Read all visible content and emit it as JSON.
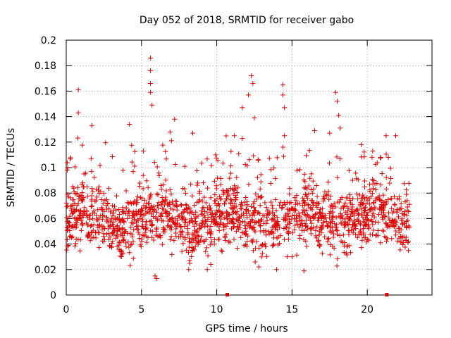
{
  "chart_data": {
    "type": "scatter",
    "title": "Day 052 of 2018, SRMTID for receiver gabo",
    "xlabel": "GPS time / hours",
    "ylabel": "SRMTID / TECUs",
    "xlim": [
      0,
      24.3
    ],
    "ylim": [
      0,
      0.2
    ],
    "x_ticks": [
      0,
      5,
      10,
      15,
      20
    ],
    "x_tick_labels": [
      "0",
      "5",
      "10",
      "15",
      "20"
    ],
    "y_ticks": [
      0,
      0.02,
      0.04,
      0.06,
      0.08,
      0.1,
      0.12,
      0.14,
      0.16,
      0.18,
      0.2
    ],
    "y_tick_labels": [
      "0",
      "0.02",
      "0.04",
      "0.06",
      "0.08",
      "0.1",
      "0.12",
      "0.14",
      "0.16",
      "0.18",
      "0.2"
    ],
    "grid": true,
    "marker": "+",
    "color": "#e00000",
    "x_range_covered": [
      0,
      22.8
    ],
    "point_density_per_hour": 75,
    "typical_band": [
      0.03,
      0.09
    ],
    "zero_value_markers_x": [
      10.7,
      21.3
    ],
    "peaks": [
      {
        "x": 0.8,
        "y": 0.161
      },
      {
        "x": 0.8,
        "y": 0.143
      },
      {
        "x": 1.7,
        "y": 0.133
      },
      {
        "x": 4.2,
        "y": 0.134
      },
      {
        "x": 5.6,
        "y": 0.186
      },
      {
        "x": 5.6,
        "y": 0.176
      },
      {
        "x": 5.6,
        "y": 0.166
      },
      {
        "x": 5.6,
        "y": 0.159
      },
      {
        "x": 5.7,
        "y": 0.149
      },
      {
        "x": 6.9,
        "y": 0.128
      },
      {
        "x": 7.2,
        "y": 0.138
      },
      {
        "x": 8.4,
        "y": 0.127
      },
      {
        "x": 11.7,
        "y": 0.147
      },
      {
        "x": 12.1,
        "y": 0.157
      },
      {
        "x": 12.3,
        "y": 0.172
      },
      {
        "x": 12.4,
        "y": 0.166
      },
      {
        "x": 12.5,
        "y": 0.139
      },
      {
        "x": 14.4,
        "y": 0.165
      },
      {
        "x": 14.4,
        "y": 0.157
      },
      {
        "x": 14.5,
        "y": 0.147
      },
      {
        "x": 14.5,
        "y": 0.125
      },
      {
        "x": 14.4,
        "y": 0.116
      },
      {
        "x": 16.5,
        "y": 0.129
      },
      {
        "x": 17.5,
        "y": 0.127
      },
      {
        "x": 17.9,
        "y": 0.159
      },
      {
        "x": 18.0,
        "y": 0.152
      },
      {
        "x": 18.1,
        "y": 0.141
      },
      {
        "x": 18.2,
        "y": 0.131
      },
      {
        "x": 19.6,
        "y": 0.118
      },
      {
        "x": 20.9,
        "y": 0.108
      },
      {
        "x": 21.4,
        "y": 0.108
      }
    ],
    "lows": [
      {
        "x": 5.9,
        "y": 0.015
      },
      {
        "x": 6.0,
        "y": 0.013
      },
      {
        "x": 12.8,
        "y": 0.022
      },
      {
        "x": 15.8,
        "y": 0.019
      },
      {
        "x": 9.6,
        "y": 0.024
      }
    ]
  }
}
